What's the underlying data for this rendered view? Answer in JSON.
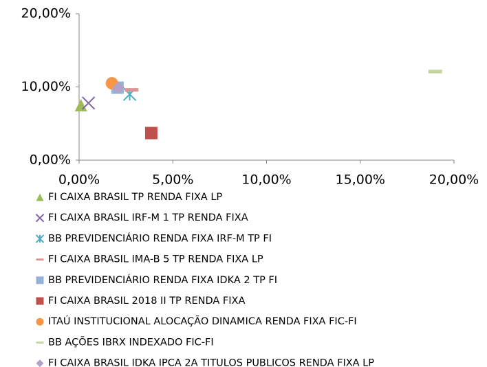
{
  "chart_data": {
    "type": "scatter",
    "xlim": [
      0,
      20
    ],
    "ylim": [
      0,
      20
    ],
    "xticks": [
      {
        "value": 0,
        "label": "0,00%"
      },
      {
        "value": 5,
        "label": "5,00%"
      },
      {
        "value": 10,
        "label": "10,00%"
      },
      {
        "value": 15,
        "label": "15,00%"
      },
      {
        "value": 20,
        "label": "20,00%"
      }
    ],
    "yticks": [
      {
        "value": 0,
        "label": "0,00%"
      },
      {
        "value": 10,
        "label": "10,00%"
      },
      {
        "value": 20,
        "label": "20,00%"
      }
    ],
    "grid": false,
    "legend": "bottom",
    "series": [
      {
        "name": "FI CAIXA BRASIL TP RENDA FIXA LP",
        "color": "#9bbb59",
        "marker": "triangle",
        "x": [
          0.1
        ],
        "values": [
          7.5
        ]
      },
      {
        "name": "FI CAIXA BRASIL IRF-M 1 TP RENDA FIXA",
        "color": "#8064a2",
        "marker": "x",
        "x": [
          0.5
        ],
        "values": [
          7.8
        ]
      },
      {
        "name": "BB PREVIDENCIÁRIO RENDA FIXA IRF-M TP FI",
        "color": "#4bacc6",
        "marker": "asterisk",
        "x": [
          2.7
        ],
        "values": [
          9.0
        ]
      },
      {
        "name": "FI CAIXA BRASIL IMA-B 5 TP RENDA FIXA LP",
        "color": "#d99694",
        "marker": "dash",
        "x": [
          2.8
        ],
        "values": [
          9.6
        ]
      },
      {
        "name": "BB PREVIDENCIÁRIO RENDA FIXA IDKA 2 TP FI",
        "color": "#95b3d7",
        "marker": "square",
        "x": [
          2.05
        ],
        "values": [
          9.9
        ]
      },
      {
        "name": "FI CAIXA BRASIL 2018 II TP RENDA FIXA",
        "color": "#c0504d",
        "marker": "square",
        "x": [
          3.85
        ],
        "values": [
          3.7
        ]
      },
      {
        "name": "ITAÚ INSTITUCIONAL ALOCAÇÃO DINAMICA RENDA FIXA FIC-FI",
        "color": "#f79646",
        "marker": "circle",
        "x": [
          1.75
        ],
        "values": [
          10.5
        ]
      },
      {
        "name": "BB AÇÕES IBRX INDEXADO FIC-FI",
        "color": "#c3d69b",
        "marker": "dash",
        "x": [
          19.0
        ],
        "values": [
          12.1
        ]
      },
      {
        "name": "FI CAIXA BRASIL IDKA IPCA 2A TITULOS PUBLICOS RENDA FIXA LP",
        "color": "#b3a2c7",
        "marker": "diamond",
        "x": [
          2.1
        ],
        "values": [
          9.9
        ]
      }
    ]
  }
}
